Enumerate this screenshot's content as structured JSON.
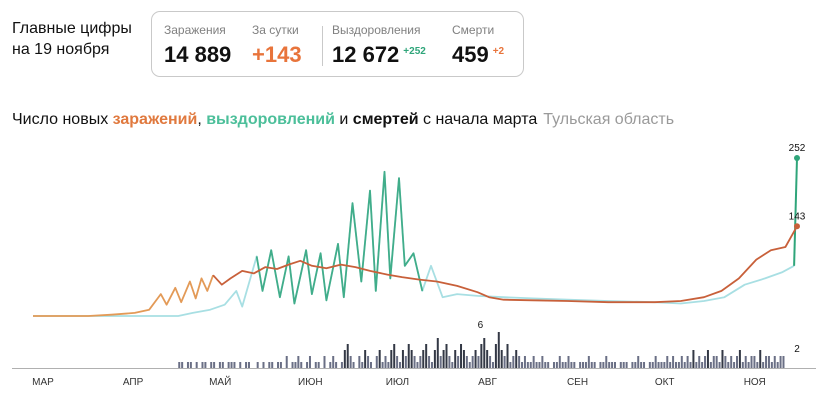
{
  "header": {
    "line1": "Главные цифры",
    "line2": "на 19 ноября"
  },
  "stats": {
    "cases": {
      "label": "Заражения",
      "value": "14 889"
    },
    "daily": {
      "label": "За сутки",
      "value": "+143"
    },
    "recovered": {
      "label": "Выздоровления",
      "value": "12 672",
      "delta": "+252"
    },
    "deaths": {
      "label": "Смерти",
      "value": "459",
      "delta": "+2"
    }
  },
  "chart_title": {
    "prefix": "Число новых ",
    "cases": "заражений",
    "sep1": ", ",
    "recovered": "выздоровлений",
    "sep2": " и ",
    "deaths": "смертей",
    "suffix": " с начала марта",
    "region": "Тульская область"
  },
  "colors": {
    "cases_line": "#c8603a",
    "cases_early": "#e39a57",
    "recovered_light": "#a8dfe3",
    "recovered_dark": "#2fa57a",
    "deaths_bars": "#6a6f85",
    "deaths_dark": "#333845",
    "axis": "#b0b0b0"
  },
  "chart_data": {
    "type": "line",
    "x_axis": {
      "start": "2020-03-01",
      "end": "2020-11-19",
      "ticks": [
        "МАР",
        "АПР",
        "МАЙ",
        "ИЮН",
        "ИЮЛ",
        "АВГ",
        "СЕН",
        "ОКТ",
        "НОЯ"
      ]
    },
    "lines": {
      "cases": {
        "points": [
          [
            "2020-03-01",
            0
          ],
          [
            "2020-03-20",
            0
          ],
          [
            "2020-03-28",
            2
          ],
          [
            "2020-04-05",
            5
          ],
          [
            "2020-04-10",
            10
          ],
          [
            "2020-04-14",
            35
          ],
          [
            "2020-04-16",
            18
          ],
          [
            "2020-04-19",
            45
          ],
          [
            "2020-04-21",
            22
          ],
          [
            "2020-04-24",
            55
          ],
          [
            "2020-04-26",
            28
          ],
          [
            "2020-04-28",
            60
          ],
          [
            "2020-04-30",
            40
          ],
          [
            "2020-05-02",
            65
          ],
          [
            "2020-05-05",
            50
          ],
          [
            "2020-05-08",
            60
          ],
          [
            "2020-05-12",
            72
          ],
          [
            "2020-05-16",
            68
          ],
          [
            "2020-05-20",
            78
          ],
          [
            "2020-05-24",
            75
          ],
          [
            "2020-05-28",
            82
          ],
          [
            "2020-06-01",
            88
          ],
          [
            "2020-06-05",
            80
          ],
          [
            "2020-06-10",
            76
          ],
          [
            "2020-06-15",
            82
          ],
          [
            "2020-06-20",
            78
          ],
          [
            "2020-06-25",
            72
          ],
          [
            "2020-07-01",
            66
          ],
          [
            "2020-07-06",
            62
          ],
          [
            "2020-07-12",
            58
          ],
          [
            "2020-07-18",
            55
          ],
          [
            "2020-07-25",
            48
          ],
          [
            "2020-08-01",
            38
          ],
          [
            "2020-08-05",
            30
          ],
          [
            "2020-08-10",
            26
          ],
          [
            "2020-08-20",
            25
          ],
          [
            "2020-09-01",
            24
          ],
          [
            "2020-09-15",
            22
          ],
          [
            "2020-10-01",
            22
          ],
          [
            "2020-10-10",
            24
          ],
          [
            "2020-10-18",
            30
          ],
          [
            "2020-10-24",
            40
          ],
          [
            "2020-10-30",
            60
          ],
          [
            "2020-11-05",
            90
          ],
          [
            "2020-11-10",
            105
          ],
          [
            "2020-11-15",
            110
          ],
          [
            "2020-11-19",
            143
          ]
        ]
      },
      "recovered": {
        "points": [
          [
            "2020-03-01",
            0
          ],
          [
            "2020-04-20",
            0
          ],
          [
            "2020-04-25",
            5
          ],
          [
            "2020-05-01",
            10
          ],
          [
            "2020-05-06",
            18
          ],
          [
            "2020-05-10",
            40
          ],
          [
            "2020-05-12",
            15
          ],
          [
            "2020-05-17",
            95
          ],
          [
            "2020-05-19",
            40
          ],
          [
            "2020-05-22",
            105
          ],
          [
            "2020-05-25",
            30
          ],
          [
            "2020-05-28",
            95
          ],
          [
            "2020-05-30",
            20
          ],
          [
            "2020-06-03",
            105
          ],
          [
            "2020-06-05",
            35
          ],
          [
            "2020-06-08",
            100
          ],
          [
            "2020-06-10",
            25
          ],
          [
            "2020-06-14",
            115
          ],
          [
            "2020-06-16",
            30
          ],
          [
            "2020-06-19",
            180
          ],
          [
            "2020-06-22",
            55
          ],
          [
            "2020-06-25",
            200
          ],
          [
            "2020-06-27",
            40
          ],
          [
            "2020-06-30",
            230
          ],
          [
            "2020-07-02",
            60
          ],
          [
            "2020-07-05",
            220
          ],
          [
            "2020-07-07",
            80
          ],
          [
            "2020-07-10",
            100
          ],
          [
            "2020-07-13",
            40
          ],
          [
            "2020-07-16",
            80
          ],
          [
            "2020-07-20",
            30
          ],
          [
            "2020-07-25",
            35
          ],
          [
            "2020-08-01",
            32
          ],
          [
            "2020-08-10",
            30
          ],
          [
            "2020-08-20",
            28
          ],
          [
            "2020-09-01",
            26
          ],
          [
            "2020-09-15",
            24
          ],
          [
            "2020-10-01",
            22
          ],
          [
            "2020-10-10",
            20
          ],
          [
            "2020-10-18",
            24
          ],
          [
            "2020-10-25",
            30
          ],
          [
            "2020-11-01",
            50
          ],
          [
            "2020-11-08",
            60
          ],
          [
            "2020-11-14",
            70
          ],
          [
            "2020-11-18",
            80
          ],
          [
            "2020-11-19",
            252
          ]
        ]
      }
    },
    "deaths_bars": {
      "start": "2020-04-20",
      "values": [
        1,
        1,
        0,
        1,
        1,
        0,
        1,
        0,
        1,
        1,
        0,
        1,
        1,
        0,
        1,
        1,
        0,
        1,
        1,
        1,
        0,
        1,
        0,
        1,
        1,
        0,
        0,
        1,
        0,
        1,
        0,
        1,
        1,
        0,
        1,
        1,
        0,
        2,
        0,
        1,
        1,
        2,
        1,
        0,
        1,
        2,
        0,
        1,
        1,
        0,
        2,
        0,
        1,
        2,
        1,
        0,
        1,
        3,
        4,
        2,
        1,
        0,
        2,
        1,
        3,
        2,
        1,
        0,
        2,
        3,
        1,
        2,
        1,
        3,
        4,
        2,
        1,
        3,
        2,
        4,
        3,
        2,
        1,
        2,
        3,
        4,
        2,
        1,
        3,
        5,
        2,
        3,
        4,
        2,
        1,
        3,
        2,
        4,
        3,
        2,
        1,
        2,
        3,
        2,
        4,
        5,
        3,
        2,
        1,
        4,
        6,
        3,
        2,
        4,
        1,
        2,
        3,
        2,
        1,
        2,
        1,
        1,
        2,
        1,
        1,
        2,
        1,
        1,
        0,
        1,
        1,
        2,
        1,
        1,
        2,
        1,
        1,
        0,
        1,
        1,
        1,
        2,
        1,
        1,
        0,
        1,
        1,
        2,
        1,
        1,
        1,
        0,
        1,
        1,
        1,
        0,
        1,
        1,
        2,
        1,
        1,
        0,
        1,
        1,
        2,
        1,
        1,
        1,
        2,
        1,
        2,
        1,
        1,
        2,
        1,
        2,
        1,
        3,
        1,
        2,
        1,
        2,
        3,
        1,
        2,
        2,
        1,
        3,
        2,
        1,
        2,
        1,
        2,
        3,
        1,
        2,
        1,
        2,
        2,
        1,
        3,
        1,
        2,
        2,
        1,
        2,
        1,
        2,
        2
      ]
    },
    "annotations": [
      {
        "label": "252",
        "series": "recovered",
        "x": "2020-11-19",
        "y": 252
      },
      {
        "label": "143",
        "series": "cases",
        "x": "2020-11-19",
        "y": 143
      },
      {
        "label": "6",
        "series": "deaths",
        "x": "2020-08-02",
        "y": 6
      },
      {
        "label": "2",
        "series": "deaths",
        "x": "2020-11-19",
        "y": 2
      }
    ]
  }
}
